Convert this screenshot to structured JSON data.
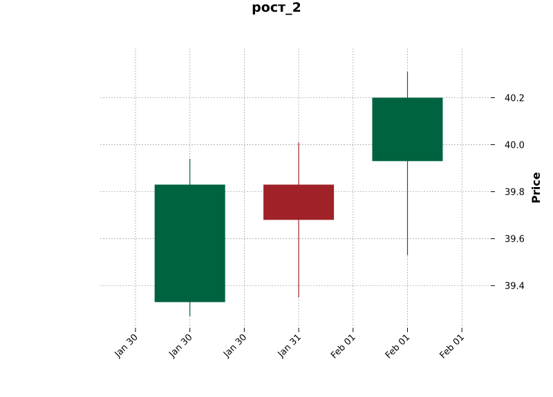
{
  "chart_data": {
    "type": "candlestick",
    "title": "рост_2",
    "ylabel": "Price",
    "xlabel": "",
    "ylim": [
      39.22,
      40.41
    ],
    "y_ticks": [
      39.4,
      39.6,
      39.8,
      40.0,
      40.2
    ],
    "x_tick_labels": [
      "Jan 30",
      "Jan 30",
      "Jan 30",
      "Jan 31",
      "Feb 01",
      "Feb 01",
      "Feb 01"
    ],
    "grid": true,
    "colors": {
      "up": "#006340",
      "down": "#a02128",
      "grid": "#a6a6a6"
    },
    "candles": [
      {
        "date": "Jan 30",
        "open": 39.33,
        "high": 39.94,
        "low": 39.27,
        "close": 39.83
      },
      {
        "date": "Jan 31",
        "open": 39.83,
        "high": 40.01,
        "low": 39.35,
        "close": 39.68
      },
      {
        "date": "Feb 01",
        "open": 39.93,
        "high": 40.31,
        "low": 39.53,
        "close": 40.2
      }
    ]
  }
}
